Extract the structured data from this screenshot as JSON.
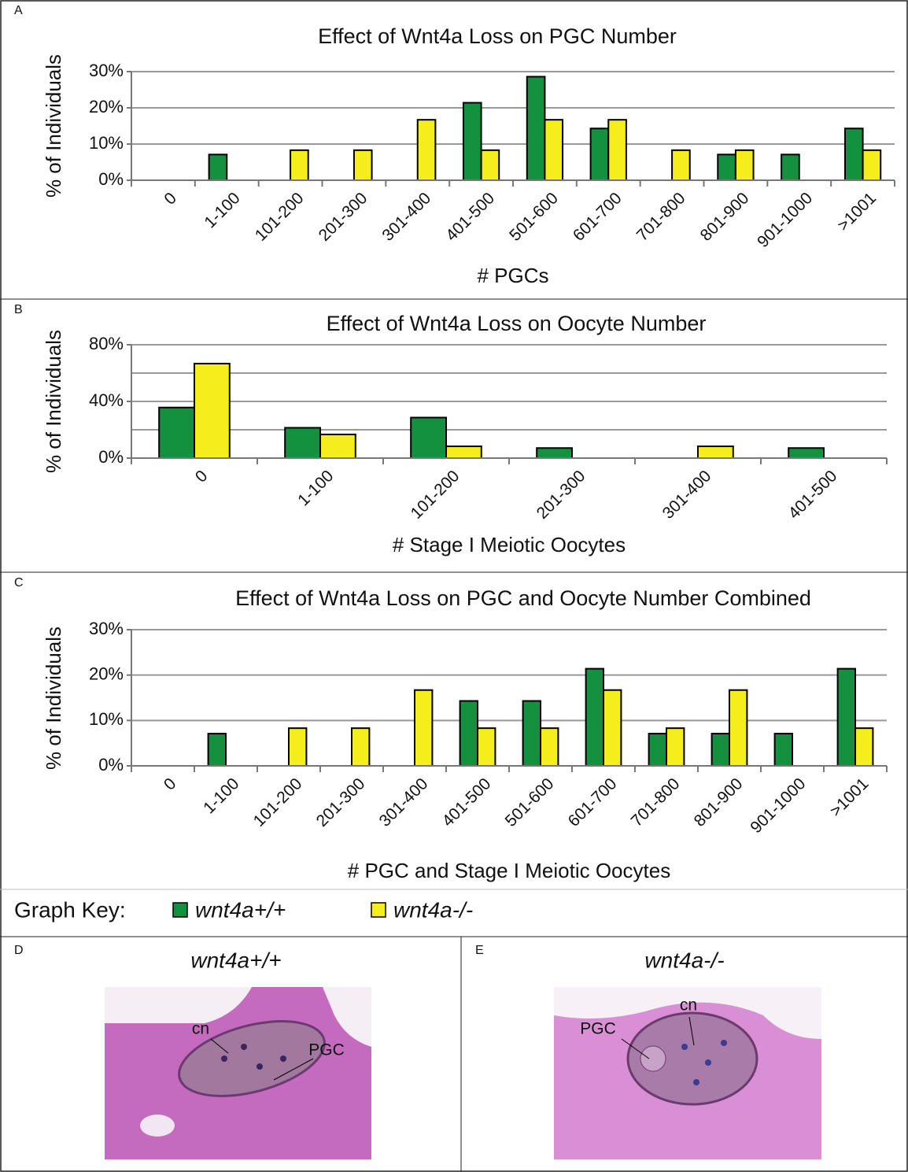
{
  "chart_data": [
    {
      "type": "bar",
      "panel": "A",
      "title": "Effect of Wnt4a Loss on PGC Number",
      "y_label": "% of Individuals",
      "x_label": "# PGCs",
      "categories": [
        "0",
        "1-100",
        "101-200",
        "201-300",
        "301-400",
        "401-500",
        "501-600",
        "601-700",
        "701-800",
        "801-900",
        "901-1000",
        ">1001"
      ],
      "series": [
        {
          "name": "wnt4a+/+",
          "color": "#13913f",
          "values": [
            0,
            7.1,
            0,
            0,
            0,
            21.4,
            28.6,
            14.3,
            0,
            7.1,
            7.1,
            14.3
          ]
        },
        {
          "name": "wnt4a-/-",
          "color": "#f6ee1c",
          "values": [
            0,
            0,
            8.3,
            8.3,
            16.7,
            8.3,
            16.7,
            16.7,
            8.3,
            8.3,
            0,
            8.3
          ]
        }
      ],
      "ylim": [
        0,
        30
      ],
      "yticks": [
        {
          "value": 0,
          "label": "0%"
        },
        {
          "value": 10,
          "label": "10%"
        },
        {
          "value": 20,
          "label": "20%"
        },
        {
          "value": 30,
          "label": "30%"
        }
      ],
      "grid": true
    },
    {
      "type": "bar",
      "panel": "B",
      "title": "Effect of Wnt4a Loss on Oocyte Number",
      "y_label": "% of Individuals",
      "x_label": "# Stage I Meiotic Oocytes",
      "categories": [
        "0",
        "1-100",
        "101-200",
        "201-300",
        "301-400",
        "401-500"
      ],
      "series": [
        {
          "color": "#13913f",
          "values": [
            35.7,
            21.4,
            28.6,
            7.1,
            0,
            7.1
          ]
        },
        {
          "color": "#f6ee1c",
          "values": [
            66.7,
            16.7,
            8.3,
            0,
            8.3,
            0
          ]
        }
      ],
      "ylim": [
        0,
        80
      ],
      "yticks": [
        {
          "value": 0,
          "label": "0%"
        },
        {
          "value": 40,
          "label": "40%"
        },
        {
          "value": 80,
          "label": "80%"
        }
      ],
      "minor_yticks": [
        20,
        60
      ],
      "grid": true
    },
    {
      "type": "bar",
      "panel": "C",
      "title": "Effect of Wnt4a Loss on PGC and Oocyte Number Combined",
      "y_label": "% of Individuals",
      "x_label": "# PGC and Stage I Meiotic Oocytes",
      "categories": [
        "0",
        "1-100",
        "101-200",
        "201-300",
        "301-400",
        "401-500",
        "501-600",
        "601-700",
        "701-800",
        "801-900",
        "901-1000",
        ">1001"
      ],
      "series": [
        {
          "color": "#13913f",
          "values": [
            0,
            7.1,
            0,
            0,
            0,
            14.3,
            14.3,
            21.4,
            7.1,
            7.1,
            7.1,
            21.4
          ]
        },
        {
          "color": "#f6ee1c",
          "values": [
            0,
            0,
            8.3,
            8.3,
            16.7,
            8.3,
            8.3,
            16.7,
            8.3,
            16.7,
            0,
            8.3
          ]
        }
      ],
      "ylim": [
        0,
        30
      ],
      "yticks": [
        {
          "value": 0,
          "label": "0%"
        },
        {
          "value": 10,
          "label": "10%"
        },
        {
          "value": 20,
          "label": "20%"
        },
        {
          "value": 30,
          "label": "30%"
        }
      ],
      "grid": true
    }
  ],
  "key": {
    "title": "Graph Key:"
  },
  "photos": [
    {
      "panel": "D",
      "title": "wnt4a+/+",
      "labels": [
        "cn",
        "PGC"
      ]
    },
    {
      "panel": "E",
      "title": "wnt4a-/-",
      "labels": [
        "PGC",
        "cn"
      ]
    }
  ]
}
